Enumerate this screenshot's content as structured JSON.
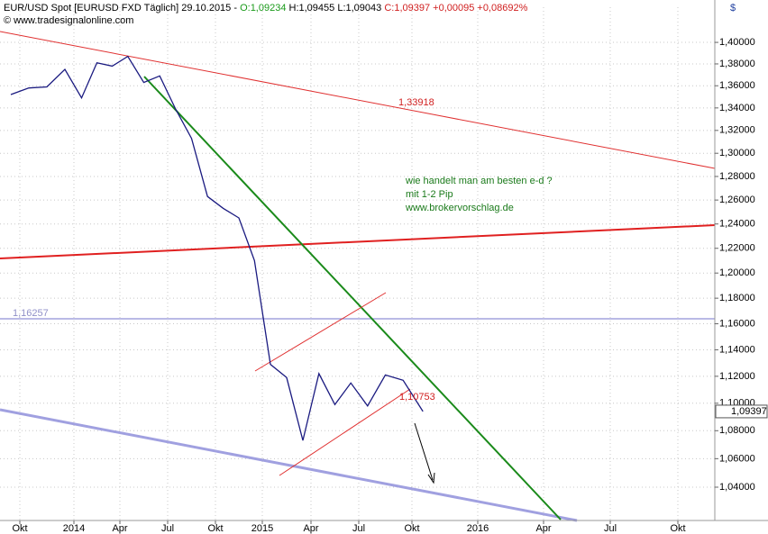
{
  "chart_data": {
    "type": "line",
    "title": {
      "instrument": "EUR/USD Spot [EURUSD FXD  Täglich] 29.10.2015 - ",
      "open": "O:1,09234",
      "high_low": " H:1,09455 L:1,09043 ",
      "close": "C:1,09397 +0,00095 +0,08692%"
    },
    "source": "© www.tradesignalonline.com",
    "currency": "$",
    "x": [
      "2013-09",
      "2013-10",
      "2013-11",
      "2013-12",
      "2014-01",
      "2014-02",
      "2014-03",
      "2014-04",
      "2014-05",
      "2014-06",
      "2014-07",
      "2014-08",
      "2014-09",
      "2014-10",
      "2014-11",
      "2014-12",
      "2015-01",
      "2015-02",
      "2015-03",
      "2015-04",
      "2015-05",
      "2015-06",
      "2015-07",
      "2015-08",
      "2015-09",
      "2015-10"
    ],
    "series": [
      {
        "name": "EUR/USD",
        "color": "#1a1a80",
        "values": [
          1.352,
          1.358,
          1.359,
          1.375,
          1.349,
          1.381,
          1.378,
          1.387,
          1.363,
          1.369,
          1.339,
          1.313,
          1.263,
          1.253,
          1.245,
          1.21,
          1.129,
          1.119,
          1.073,
          1.122,
          1.099,
          1.115,
          1.098,
          1.121,
          1.117,
          1.094
        ]
      }
    ],
    "log": true,
    "grid": true,
    "ylim": [
      1.0171,
      1.4333
    ],
    "yticks": [
      {
        "value": 1.04,
        "label": "1,04000"
      },
      {
        "value": 1.06,
        "label": "1,06000"
      },
      {
        "value": 1.08,
        "label": "1,08000"
      },
      {
        "value": 1.1,
        "label": "1,10000"
      },
      {
        "value": 1.12,
        "label": "1,12000"
      },
      {
        "value": 1.14,
        "label": "1,14000"
      },
      {
        "value": 1.16,
        "label": "1,16000"
      },
      {
        "value": 1.18,
        "label": "1,18000"
      },
      {
        "value": 1.2,
        "label": "1,20000"
      },
      {
        "value": 1.22,
        "label": "1,22000"
      },
      {
        "value": 1.24,
        "label": "1,24000"
      },
      {
        "value": 1.26,
        "label": "1,26000"
      },
      {
        "value": 1.28,
        "label": "1,28000"
      },
      {
        "value": 1.3,
        "label": "1,30000"
      },
      {
        "value": 1.32,
        "label": "1,32000"
      },
      {
        "value": 1.34,
        "label": "1,34000"
      },
      {
        "value": 1.36,
        "label": "1,36000"
      },
      {
        "value": 1.38,
        "label": "1,38000"
      },
      {
        "value": 1.4,
        "label": "1,40000"
      }
    ],
    "xticks": [
      {
        "value": "2013-10",
        "label": "Okt"
      },
      {
        "value": "2014-01",
        "label": "2014"
      },
      {
        "value": "2014-04",
        "label": "Apr"
      },
      {
        "value": "2014-07",
        "label": "Jul"
      },
      {
        "value": "2014-10",
        "label": "Okt"
      },
      {
        "value": "2015-01",
        "label": "2015"
      },
      {
        "value": "2015-04",
        "label": "Apr"
      },
      {
        "value": "2015-07",
        "label": "Jul"
      },
      {
        "value": "2015-10",
        "label": "Okt"
      },
      {
        "value": "2016-01",
        "label": "2016"
      },
      {
        "value": "2016-04",
        "label": "Apr"
      },
      {
        "value": "2016-07",
        "label": "Jul"
      },
      {
        "value": "2016-10",
        "label": "Okt"
      }
    ],
    "last_price": {
      "value": 1.09397,
      "label": "1,09397"
    },
    "annotations": {
      "upper_line": "1,33918",
      "horizontal_line": "1,16257",
      "channel": "1,10753",
      "note": [
        "wie handelt man am besten e-d ?",
        "mit 1-2 Pip",
        "www.brokervorschlag.de"
      ]
    }
  }
}
